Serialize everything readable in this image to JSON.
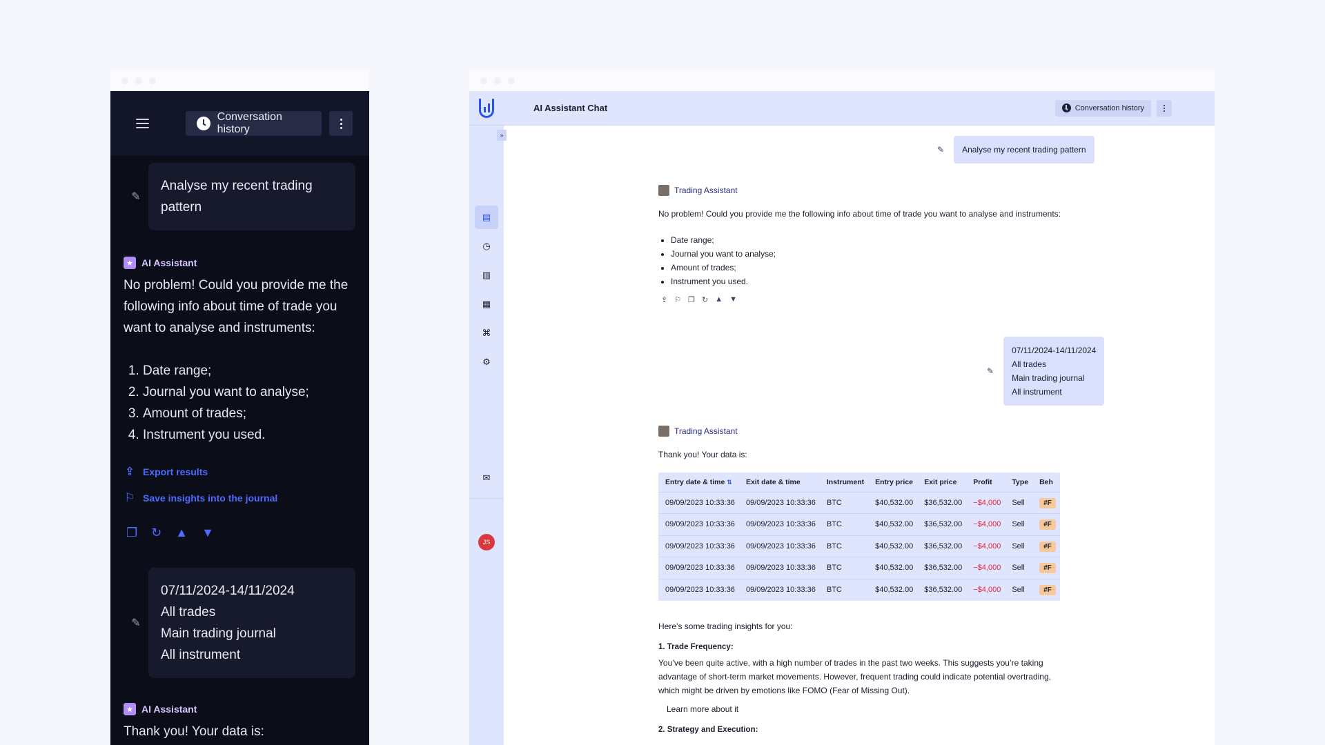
{
  "mobile": {
    "history_label": "Conversation history",
    "user_msg_1": "Analyse my recent trading pattern",
    "assistant_name": "AI Assistant",
    "assistant_intro": "No problem! Could you provide me the following info about time of trade you want to analyse and instruments:",
    "list": [
      "Date range;",
      "Journal you want to analyse;",
      "Amount of trades;",
      "Instrument you used."
    ],
    "export_label": "Export results",
    "save_label": "Save insights into the journal",
    "user_msg_2": [
      "07/11/2024-14/11/2024",
      "All trades",
      "Main trading journal",
      "All instrument"
    ],
    "assistant_reply": "Thank you! Your data is:"
  },
  "desktop": {
    "title": "AI Assistant Chat",
    "history_label": "Conversation history",
    "expand_glyph": "»",
    "avatar_initials": "JS",
    "user_msg_1": "Analyse my recent trading pattern",
    "assistant_name": "Trading Assistant",
    "assistant_intro": "No problem! Could you provide me the following info about time of trade you want to analyse and instruments:",
    "list": [
      "Date range;",
      "Journal you want to analyse;",
      "Amount of trades;",
      "Instrument you used."
    ],
    "user_msg_2": [
      "07/11/2024-14/11/2024",
      "All trades",
      "Main trading journal",
      "All instrument"
    ],
    "assistant_reply": "Thank you! Your data is:",
    "table": {
      "headers": [
        "Entry date & time",
        "Exit date & time",
        "Instrument",
        "Entry price",
        "Exit price",
        "Profit",
        "Type",
        "Beh"
      ],
      "sort_glyph": "⇅",
      "rows": [
        [
          "09/09/2023 10:33:36",
          "09/09/2023 10:33:36",
          "BTC",
          "$40,532.00",
          "$36,532.00",
          "−$4,000",
          "Sell",
          "#F"
        ],
        [
          "09/09/2023 10:33:36",
          "09/09/2023 10:33:36",
          "BTC",
          "$40,532.00",
          "$36,532.00",
          "−$4,000",
          "Sell",
          "#F"
        ],
        [
          "09/09/2023 10:33:36",
          "09/09/2023 10:33:36",
          "BTC",
          "$40,532.00",
          "$36,532.00",
          "−$4,000",
          "Sell",
          "#F"
        ],
        [
          "09/09/2023 10:33:36",
          "09/09/2023 10:33:36",
          "BTC",
          "$40,532.00",
          "$36,532.00",
          "−$4,000",
          "Sell",
          "#F"
        ],
        [
          "09/09/2023 10:33:36",
          "09/09/2023 10:33:36",
          "BTC",
          "$40,532.00",
          "$36,532.00",
          "−$4,000",
          "Sell",
          "#F"
        ]
      ]
    },
    "insights_intro": "Here’s some trading insights for you:",
    "insight_1_title": "1. Trade Frequency:",
    "insight_1_text": "You’ve been quite active, with a high number of trades in the past two weeks. This suggests you’re taking advantage of short-term market movements. However, frequent trading could indicate potential overtrading, which might be driven by emotions like FOMO (Fear of Missing Out).",
    "learn_more": "Learn more about it",
    "insight_2_title": "2. Strategy and Execution:"
  },
  "colors": {
    "accent": "#2a52f2",
    "loss": "#e0243a",
    "sidebar_bg": "#dfe5fd",
    "dark_bg": "#0b0d19"
  }
}
